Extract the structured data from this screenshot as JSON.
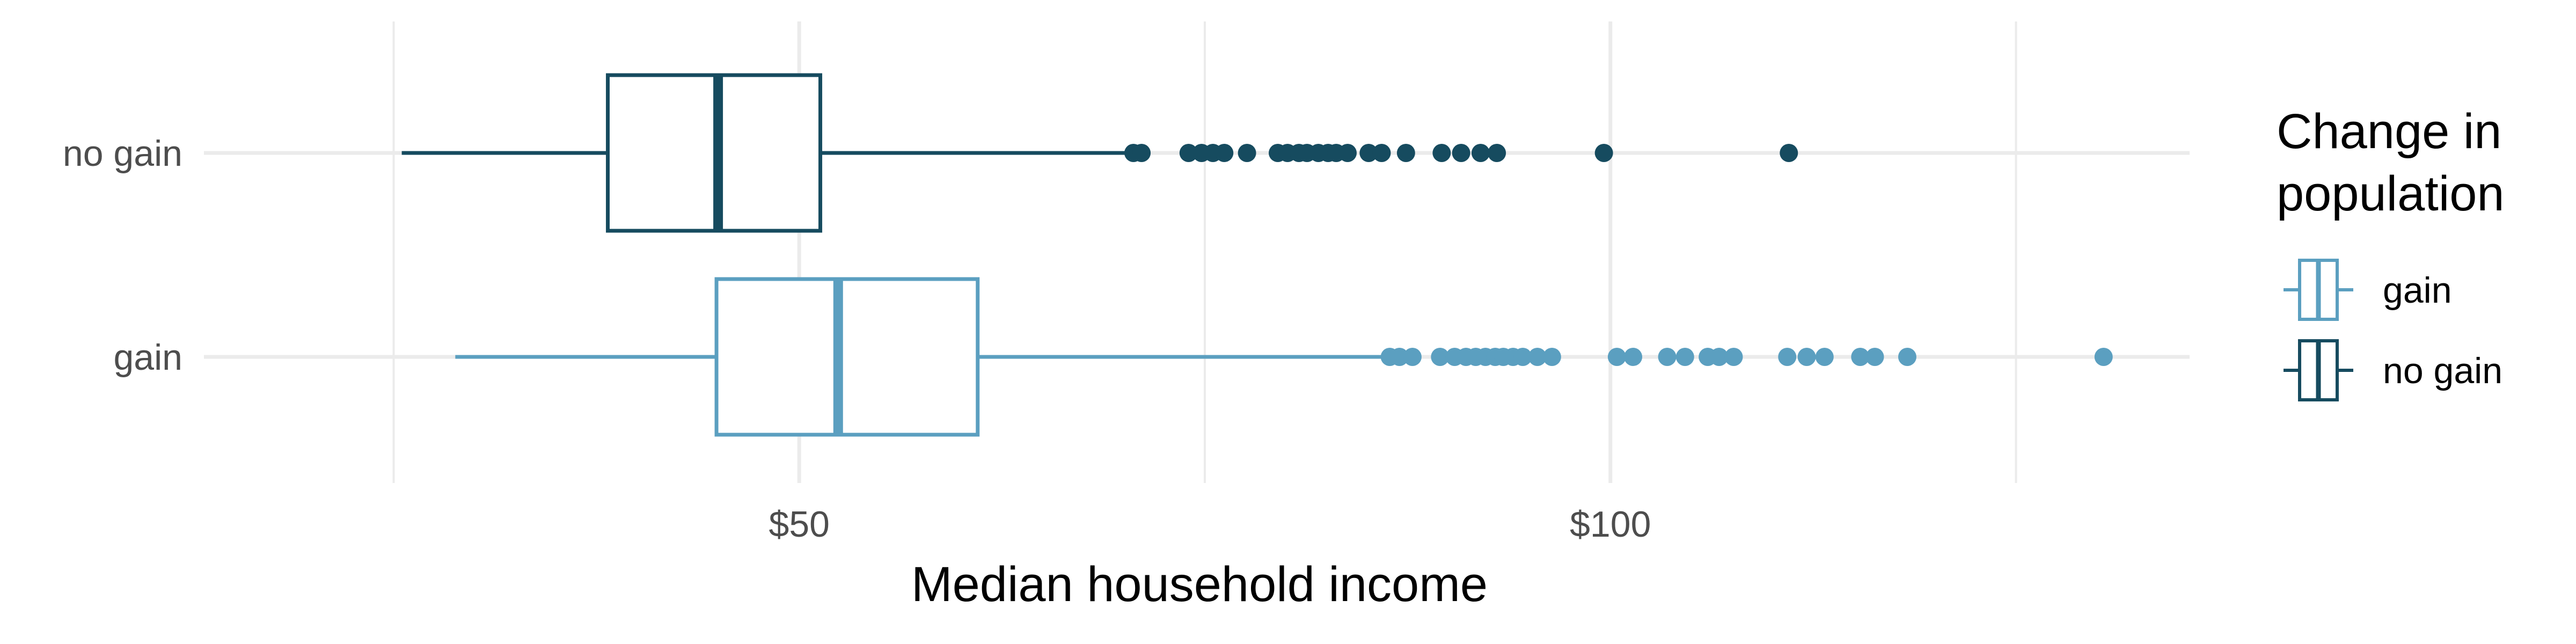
{
  "chart_data": {
    "type": "boxplot",
    "orientation": "horizontal",
    "title": "",
    "xlabel": "Median household income",
    "ylabel": "",
    "xlim": [
      20,
      135
    ],
    "x_ticks": [
      {
        "value": 50,
        "label": "$50"
      },
      {
        "value": 100,
        "label": "$100"
      }
    ],
    "x_minor_gridlines": [
      25,
      75,
      125
    ],
    "grid": true,
    "categories": [
      "no gain",
      "gain"
    ],
    "series": [
      {
        "name": "no gain",
        "color": "#164b5f",
        "whisker_low": 25.5,
        "q1": 38.2,
        "median": 45.0,
        "q3": 51.3,
        "whisker_high": 70.3,
        "outliers": [
          70.6,
          71.1,
          74.0,
          74.8,
          75.5,
          76.2,
          77.6,
          79.5,
          80.1,
          80.8,
          81.3,
          82.0,
          82.6,
          83.1,
          83.8,
          85.1,
          85.9,
          87.4,
          89.6,
          90.8,
          92.0,
          93.0,
          99.6,
          111.0
        ]
      },
      {
        "name": "gain",
        "color": "#5b9fc0",
        "whisker_low": 28.8,
        "q1": 44.9,
        "median": 52.4,
        "q3": 61.0,
        "whisker_high": 86.1,
        "outliers": [
          86.4,
          87.0,
          87.8,
          89.5,
          90.4,
          91.1,
          91.7,
          92.3,
          92.9,
          93.4,
          94.0,
          94.6,
          95.5,
          96.4,
          100.4,
          101.4,
          103.5,
          104.6,
          106.0,
          106.7,
          107.6,
          110.9,
          112.1,
          113.2,
          115.4,
          116.3,
          118.3,
          130.4
        ]
      }
    ],
    "legend": {
      "title_lines": [
        "Change in",
        "population"
      ],
      "placement": "right",
      "entries": [
        {
          "label": "gain",
          "color": "#5b9fc0"
        },
        {
          "label": "no gain",
          "color": "#164b5f"
        }
      ]
    }
  }
}
